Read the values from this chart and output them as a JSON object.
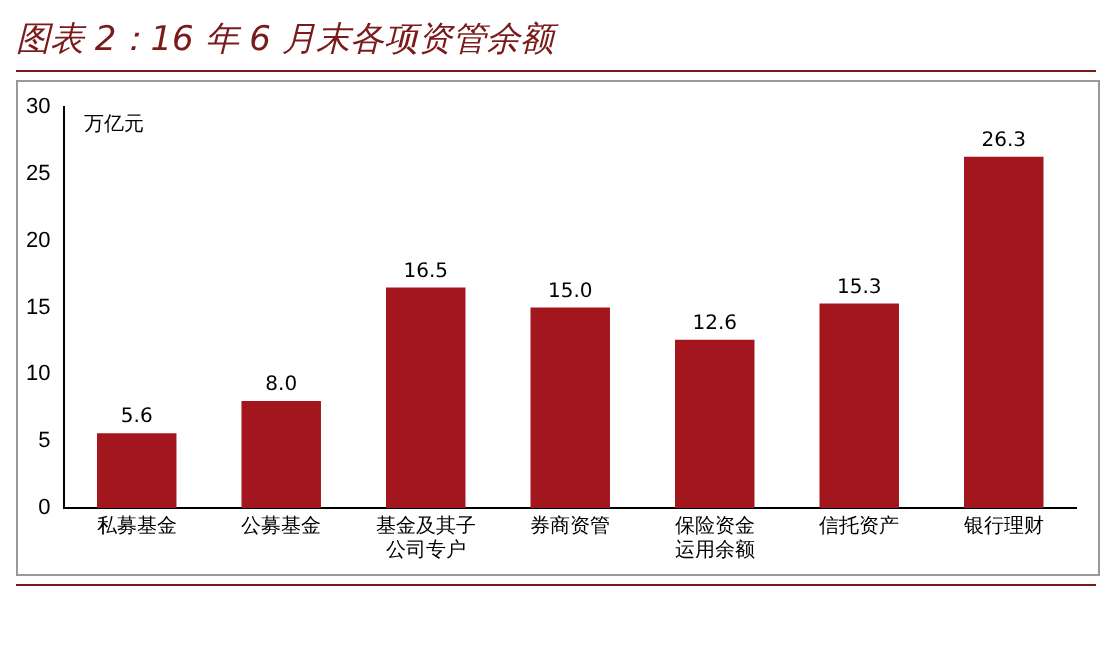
{
  "chart_data": {
    "type": "bar",
    "title": "图表 2：16 年 6 月末各项资管余额",
    "ylabel": "万亿元",
    "categories": [
      "私募基金",
      "公募基金",
      "基金及其子公司专户",
      "券商资管",
      "保险资金运用余额",
      "信托资产",
      "银行理财"
    ],
    "values": [
      5.6,
      8.0,
      16.5,
      15.0,
      12.6,
      15.3,
      26.3
    ],
    "value_labels": [
      "5.6",
      "8.0",
      "16.5",
      "15.0",
      "12.6",
      "15.3",
      "26.3"
    ],
    "color": "#a3161d",
    "ylim": [
      0,
      30
    ],
    "yticks": [
      0,
      5,
      10,
      15,
      20,
      25,
      30
    ],
    "grid": false,
    "legend": false
  }
}
